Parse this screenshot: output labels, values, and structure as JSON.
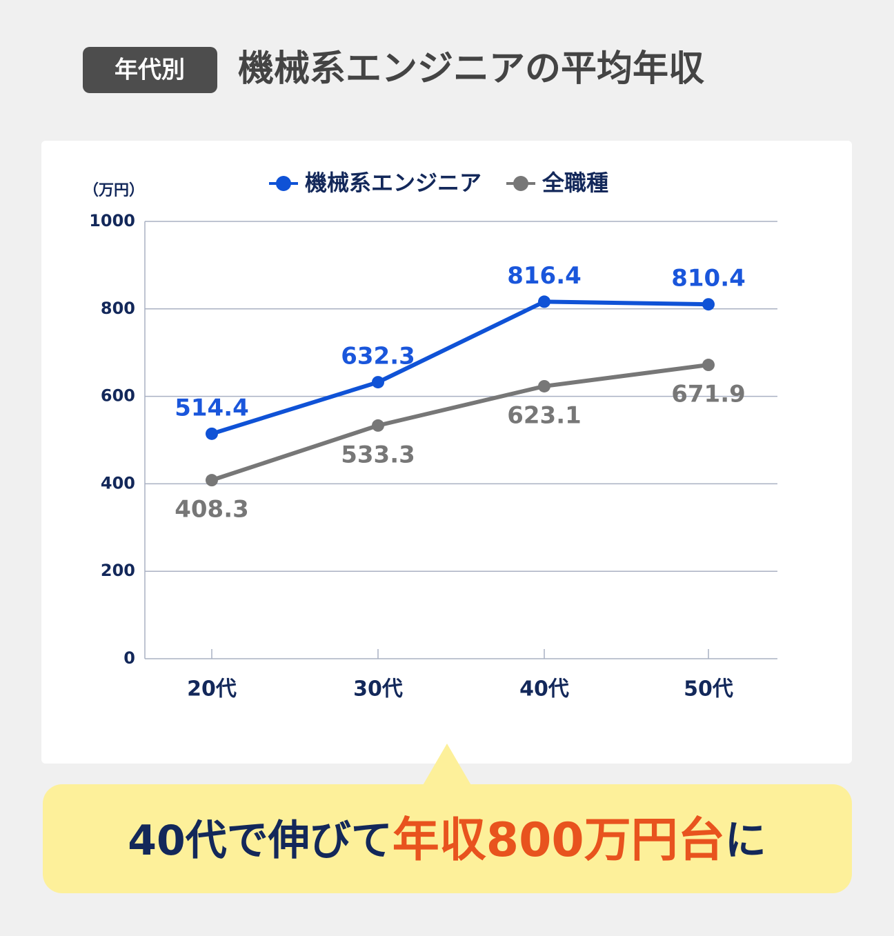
{
  "header": {
    "badge": "年代別",
    "title": "機械系エンジニアの平均年収"
  },
  "chart_data": {
    "type": "line",
    "y_unit_label": "（万円）",
    "categories": [
      "20代",
      "30代",
      "40代",
      "50代"
    ],
    "series": [
      {
        "name": "機械系エンジニア",
        "color": "#0f52d6",
        "label_color": "#1a56db",
        "label_position": "above",
        "values": [
          514.4,
          632.3,
          816.4,
          810.4
        ]
      },
      {
        "name": "全職種",
        "color": "#777777",
        "label_color": "#777777",
        "label_position": "below",
        "values": [
          408.3,
          533.3,
          623.1,
          671.9
        ]
      }
    ],
    "ylim": [
      0,
      1000
    ],
    "yticks": [
      0,
      200,
      400,
      600,
      800,
      1000
    ],
    "grid": true
  },
  "callout": {
    "parts": [
      {
        "text": "40代で伸びて",
        "color": "#13285a"
      },
      {
        "text": "年収800万円台",
        "color": "#e8531e"
      },
      {
        "text": "に",
        "color": "#13285a"
      }
    ]
  }
}
